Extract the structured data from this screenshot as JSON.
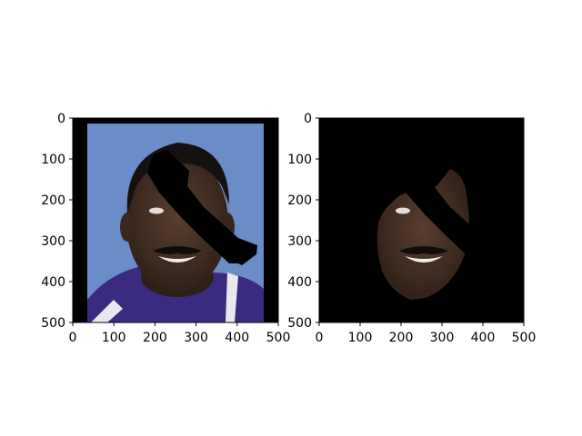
{
  "chart_data": [
    {
      "type": "image",
      "title": "",
      "xlabel": "",
      "ylabel": "",
      "xlim": [
        0,
        500
      ],
      "ylim": [
        500,
        0
      ],
      "xticks": [
        0,
        100,
        200,
        300,
        400,
        500
      ],
      "yticks": [
        0,
        100,
        200,
        300,
        400,
        500
      ],
      "image_content": "portrait-with-black-brush-occlusion",
      "colors": {
        "background": "#000000",
        "backdrop": "#6a8cc7",
        "skin": "#3e2a20",
        "hair": "#15110f",
        "shirt": "#3a2a80",
        "occlusion": "#000000"
      }
    },
    {
      "type": "image",
      "title": "",
      "xlabel": "",
      "ylabel": "",
      "xlim": [
        0,
        500
      ],
      "ylim": [
        500,
        0
      ],
      "xticks": [
        0,
        100,
        200,
        300,
        400,
        500
      ],
      "yticks": [
        0,
        100,
        200,
        300,
        400,
        500
      ],
      "image_content": "masked-face-with-black-brush-occlusion",
      "colors": {
        "background": "#000000",
        "skin": "#3e2a20",
        "occlusion": "#000000"
      }
    }
  ]
}
